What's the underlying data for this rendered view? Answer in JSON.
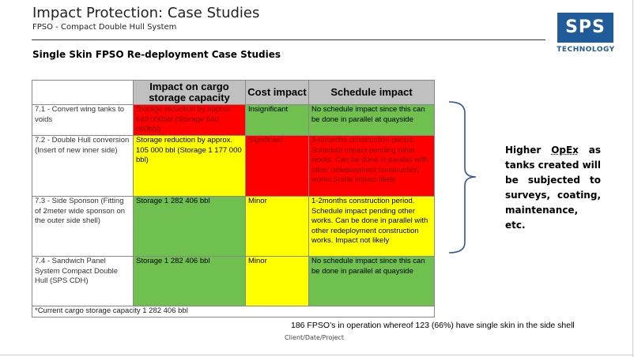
{
  "header": {
    "title": "Impact Protection: Case Studies",
    "subtitle": "FPSO - Compact Double Hull System"
  },
  "logo": {
    "text": "SPS",
    "subtext": "TECHNOLOGY",
    "color": "#1f5c99"
  },
  "section_title": "Single Skin FPSO Re-deployment Case Studies",
  "table": {
    "headers": [
      "",
      "Impact on cargo storage capacity",
      "Cost impact",
      "Schedule impact"
    ],
    "rows": [
      {
        "case": "7.1 - Convert wing tanks to voids",
        "capacity": "Storage reduction by approx. 640 000bbl (Storage 640 000bbl)",
        "cost": "Insignificant",
        "schedule": "No schedule impact since this can be done in parallel at quayside"
      },
      {
        "case": "7.2 - Double Hull conversion (Insert of new inner side)",
        "capacity": "Storage reduction by approx. 105 000 bbl (Storage 1 177 000 bbl)",
        "cost": "Significant",
        "schedule": "3-6months construction period. Schedule impact pending other works. Can be done in parallel with other redeployment construction works.Some impact likely"
      },
      {
        "case": "7.3 - Side Sponson (Fitting of 2meter wide sponson on the outer side shell)",
        "capacity": "Storage 1 282 406 bbl",
        "cost": "Minor",
        "schedule": "1-2months construction period. Schedule impact pending other works. Can be done in parallel with other redeployment construction works. Impact not likely"
      },
      {
        "case": "7.4 - Sandwich Panel System Compact Double Hull (SPS CDH)",
        "capacity": "Storage 1 282 406 bbl",
        "cost": "Minor",
        "schedule": "No schedule impact since this can be done in parallel at quayside"
      }
    ],
    "footnote": "*Current cargo storage capacity 1 282 406 bbl"
  },
  "colors": {
    "red": "#ff0000",
    "yellow": "#ffff00",
    "green": "#70c050",
    "header_gray": "#c0c0c0",
    "brace": "#2f5597"
  },
  "side_note": {
    "prefix": "Higher ",
    "emphasis": "OpEx",
    "suffix": " as tanks created will be subjected to surveys, coating, maintenance, etc."
  },
  "bottom_note": "186 FPSO’s in operation whereof 123 (66%) have single skin in the side shell",
  "footer": "Client/Date/Project"
}
